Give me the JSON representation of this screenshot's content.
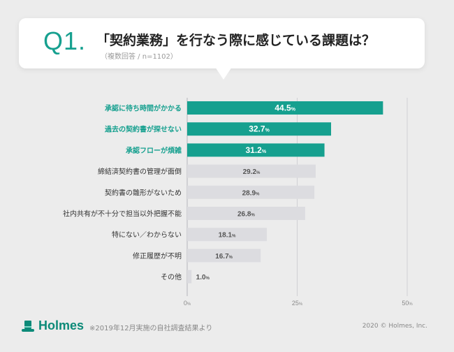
{
  "header": {
    "question_number": "Q1.",
    "title": "「契約業務」を行なう際に感じている課題は？",
    "subtitle": "（複数回答 / n=1102）"
  },
  "chart_data": {
    "type": "bar",
    "orientation": "horizontal",
    "categories": [
      "承認に待ち時間がかかる",
      "過去の契約書が探せない",
      "承認フローが煩雑",
      "締結済契約書の管理が面倒",
      "契約書の雛形がないため",
      "社内共有が不十分で担当以外把握不能",
      "特にない／わからない",
      "修正履歴が不明",
      "その他"
    ],
    "values": [
      44.5,
      32.7,
      31.2,
      29.2,
      28.9,
      26.8,
      18.1,
      16.7,
      1.0
    ],
    "value_labels": [
      "44.5",
      "32.7",
      "31.2",
      "29.2",
      "28.9",
      "26.8",
      "18.1",
      "16.7",
      "1.0"
    ],
    "highlighted_count": 3,
    "unit": "%",
    "xlim": [
      0,
      50
    ],
    "x_ticks": [
      {
        "value": 0,
        "label": "0"
      },
      {
        "value": 25,
        "label": "25"
      },
      {
        "value": 50,
        "label": "50"
      }
    ],
    "grid": true,
    "colors": {
      "highlight": "#16a08f",
      "normal": "#dcdce0",
      "highlight_label": "#16a08f",
      "normal_label": "#333333",
      "value_highlight": "#ffffff",
      "value_normal": "#555555"
    }
  },
  "footer": {
    "brand": "Holmes",
    "note": "※2019年12月実施の自社調査結果より",
    "copyright": "2020 © Holmes, Inc."
  }
}
